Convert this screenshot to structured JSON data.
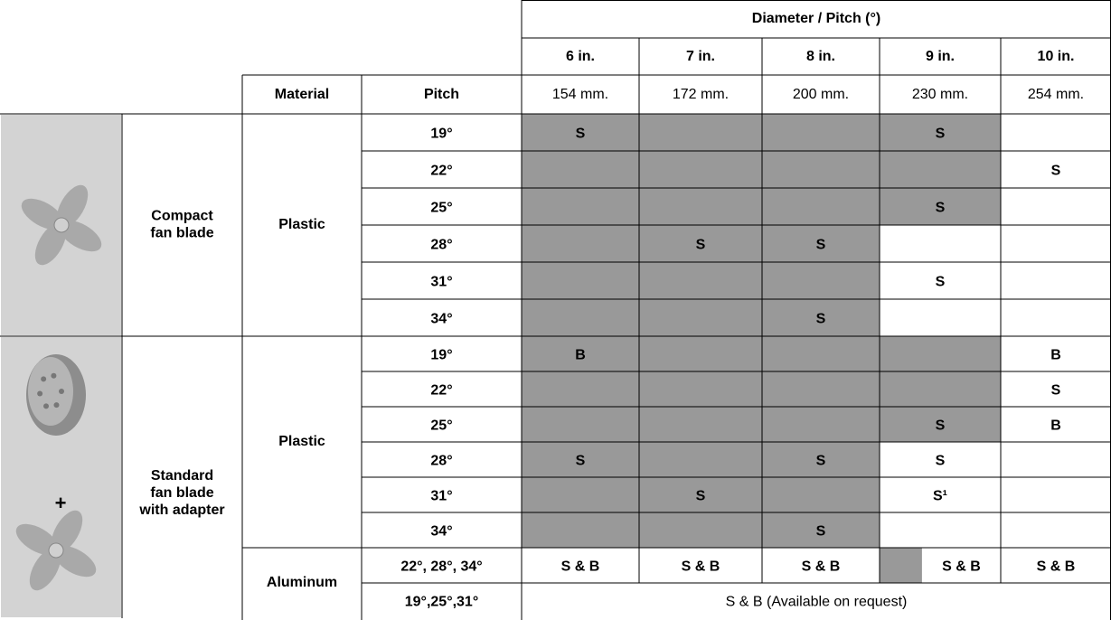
{
  "header": {
    "group_title": "Diameter / Pitch (°)",
    "diameters": [
      "6 in.",
      "7 in.",
      "8 in.",
      "9 in.",
      "10 in."
    ],
    "material_label": "Material",
    "pitch_label": "Pitch",
    "millimeters": [
      "154 mm.",
      "172 mm.",
      "200 mm.",
      "230 mm.",
      "254 mm."
    ]
  },
  "sections": [
    {
      "product": [
        "Compact",
        "fan blade"
      ],
      "materials": [
        {
          "material": "Plastic",
          "rows": [
            {
              "pitch": "19°",
              "cells": [
                "S",
                null,
                null,
                "S",
                null
              ],
              "shade": [
                1,
                1,
                1,
                1,
                0
              ]
            },
            {
              "pitch": "22°",
              "cells": [
                null,
                null,
                null,
                null,
                "S"
              ],
              "shade": [
                1,
                1,
                1,
                1,
                0
              ]
            },
            {
              "pitch": "25°",
              "cells": [
                null,
                null,
                null,
                "S",
                null
              ],
              "shade": [
                1,
                1,
                1,
                1,
                0
              ]
            },
            {
              "pitch": "28°",
              "cells": [
                null,
                "S",
                "S",
                null,
                null
              ],
              "shade": [
                1,
                1,
                1,
                0,
                0
              ]
            },
            {
              "pitch": "31°",
              "cells": [
                null,
                null,
                null,
                "S",
                null
              ],
              "shade": [
                1,
                1,
                1,
                0,
                0
              ]
            },
            {
              "pitch": "34°",
              "cells": [
                null,
                null,
                "S",
                null,
                null
              ],
              "shade": [
                1,
                1,
                1,
                0,
                0
              ]
            }
          ]
        }
      ]
    },
    {
      "product": [
        "Standard",
        "fan blade",
        "with adapter"
      ],
      "joiner": "+",
      "materials": [
        {
          "material": "Plastic",
          "rows": [
            {
              "pitch": "19°",
              "cells": [
                "B",
                null,
                null,
                null,
                "B"
              ],
              "shade": [
                1,
                1,
                1,
                1,
                0
              ]
            },
            {
              "pitch": "22°",
              "cells": [
                null,
                null,
                null,
                null,
                "S"
              ],
              "shade": [
                1,
                1,
                1,
                1,
                0
              ]
            },
            {
              "pitch": "25°",
              "cells": [
                null,
                null,
                null,
                "S",
                "B"
              ],
              "shade": [
                1,
                1,
                1,
                1,
                0
              ]
            },
            {
              "pitch": "28°",
              "cells": [
                "S",
                null,
                "S",
                "S",
                null
              ],
              "shade": [
                1,
                1,
                1,
                0,
                0
              ]
            },
            {
              "pitch": "31°",
              "cells": [
                null,
                "S",
                null,
                "S¹",
                null
              ],
              "shade": [
                1,
                1,
                1,
                0,
                0
              ]
            },
            {
              "pitch": "34°",
              "cells": [
                null,
                null,
                "S",
                null,
                null
              ],
              "shade": [
                1,
                1,
                1,
                0,
                0
              ]
            }
          ]
        },
        {
          "material": "Aluminum",
          "rows": [
            {
              "pitch": "22°, 28°, 34°",
              "cells": [
                "S & B",
                "S & B",
                "S & B",
                "S & B",
                "S & B"
              ],
              "shade": [
                0,
                0,
                0,
                0.35,
                0
              ]
            },
            {
              "pitch": "19°,25°,31°",
              "note": "S & B (Available on request)"
            }
          ]
        }
      ]
    }
  ]
}
